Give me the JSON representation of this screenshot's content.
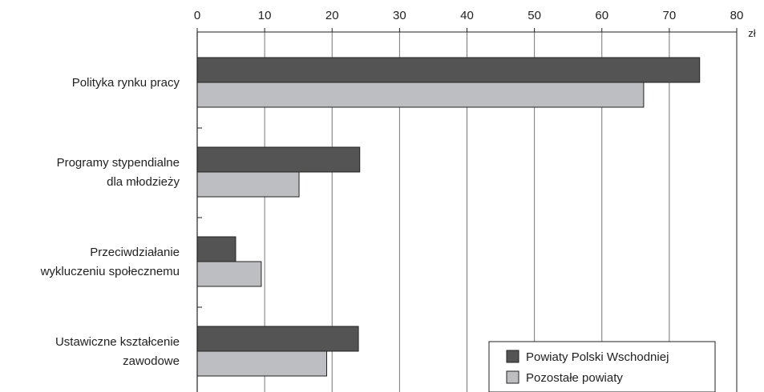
{
  "chart_data": {
    "type": "bar",
    "orientation": "horizontal",
    "categories": [
      [
        "Polityka rynku pracy"
      ],
      [
        "Programy stypendialne",
        "dla młodzieży"
      ],
      [
        "Przeciwdziałanie",
        "wykluczeniu społecznemu"
      ],
      [
        "Ustawiczne kształcenie",
        "zawodowe"
      ]
    ],
    "series": [
      {
        "name": "Powiaty Polski Wschodniej",
        "values": [
          74.5,
          24.1,
          5.7,
          23.9
        ],
        "color": "#545454"
      },
      {
        "name": "Pozostałe powiaty",
        "values": [
          66.2,
          15.1,
          9.5,
          19.2
        ],
        "color": "#bdbec2"
      }
    ],
    "xlim": [
      0,
      80
    ],
    "xticks": [
      0,
      10,
      20,
      30,
      40,
      50,
      60,
      70,
      80
    ],
    "xaxis_position": "top",
    "unit": "zł",
    "grid": true,
    "legend_position": "bottom-right"
  }
}
